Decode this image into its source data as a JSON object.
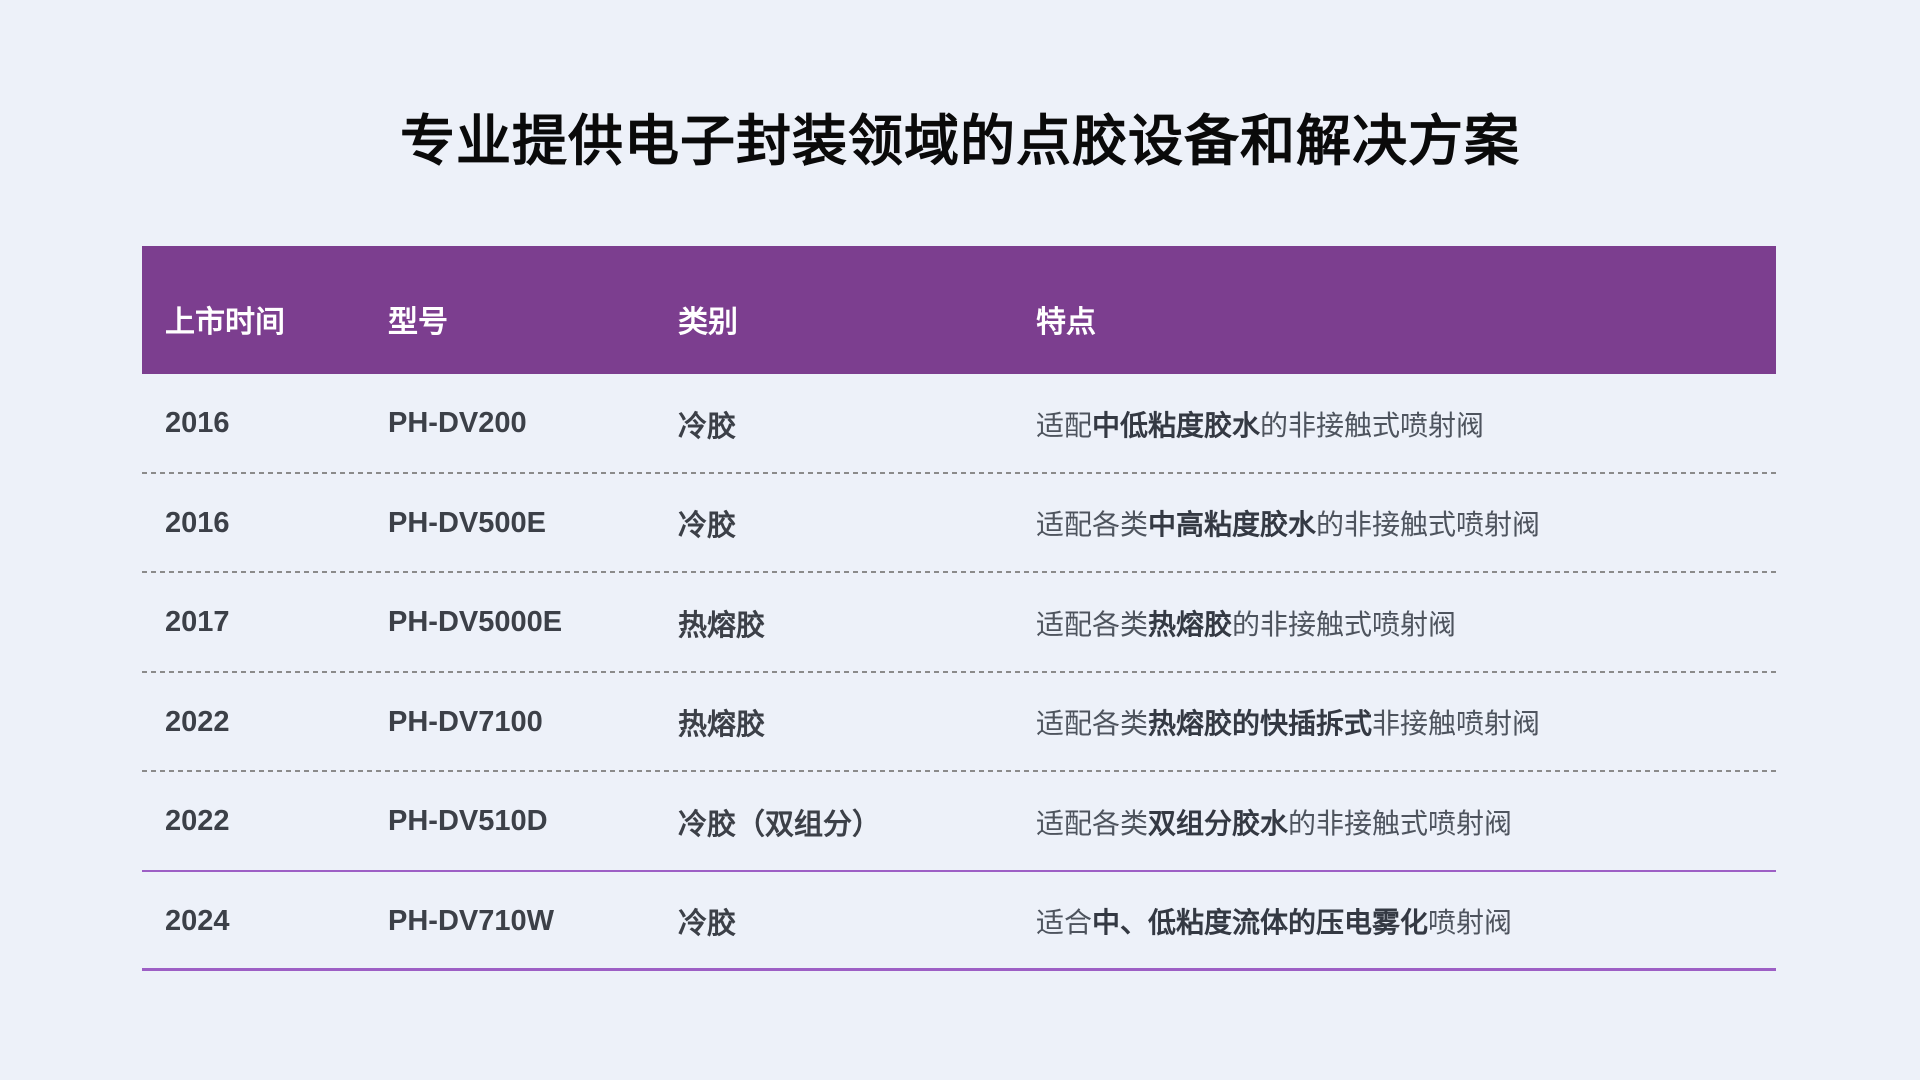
{
  "page": {
    "title": "专业提供电子封装领域的点胶设备和解决方案"
  },
  "colors": {
    "background": "#EDF1F9",
    "header_bg": "#7C3E8F",
    "header_text": "#FFFFFF",
    "accent_line": "#9D5FC5",
    "dashed_line": "#8B8B8B",
    "cell_text": "#3C4048",
    "feature_text": "#4E545E",
    "feature_bold_text": "#343943",
    "title_text": "#0A0A0A"
  },
  "table": {
    "headers": [
      "上市时间",
      "型号",
      "类别",
      "特点"
    ],
    "rows": [
      {
        "year": "2016",
        "model": "PH-DV200",
        "category": "冷胶",
        "feature": [
          {
            "t": "适配",
            "b": false
          },
          {
            "t": "中低粘度胶水",
            "b": true
          },
          {
            "t": "的非接触式喷射阀",
            "b": false
          }
        ],
        "separator": "dashed"
      },
      {
        "year": "2016",
        "model": "PH-DV500E",
        "category": "冷胶",
        "feature": [
          {
            "t": "适配各类",
            "b": false
          },
          {
            "t": "中高粘度胶水",
            "b": true
          },
          {
            "t": "的非接触式喷射阀",
            "b": false
          }
        ],
        "separator": "dashed"
      },
      {
        "year": "2017",
        "model": "PH-DV5000E",
        "category": "热熔胶",
        "feature": [
          {
            "t": "适配各类",
            "b": false
          },
          {
            "t": "热熔胶",
            "b": true
          },
          {
            "t": "的非接触式喷射阀",
            "b": false
          }
        ],
        "separator": "dashed"
      },
      {
        "year": "2022",
        "model": "PH-DV7100",
        "category": "热熔胶",
        "feature": [
          {
            "t": "适配各类",
            "b": false
          },
          {
            "t": "热熔胶的快插拆式",
            "b": true
          },
          {
            "t": "非接触喷射阀",
            "b": false
          }
        ],
        "separator": "dashed"
      },
      {
        "year": "2022",
        "model": "PH-DV510D",
        "category": "冷胶（双组分）",
        "feature": [
          {
            "t": "适配各类",
            "b": false
          },
          {
            "t": "双组分胶水",
            "b": true
          },
          {
            "t": "的非接触式喷射阀",
            "b": false
          }
        ],
        "separator": "solid"
      },
      {
        "year": "2024",
        "model": "PH-DV710W",
        "category": "冷胶",
        "feature": [
          {
            "t": "适合",
            "b": false
          },
          {
            "t": "中、低粘度流体的压电雾化",
            "b": true
          },
          {
            "t": "喷射阀",
            "b": false
          }
        ],
        "separator": "solid-bottom"
      }
    ]
  }
}
